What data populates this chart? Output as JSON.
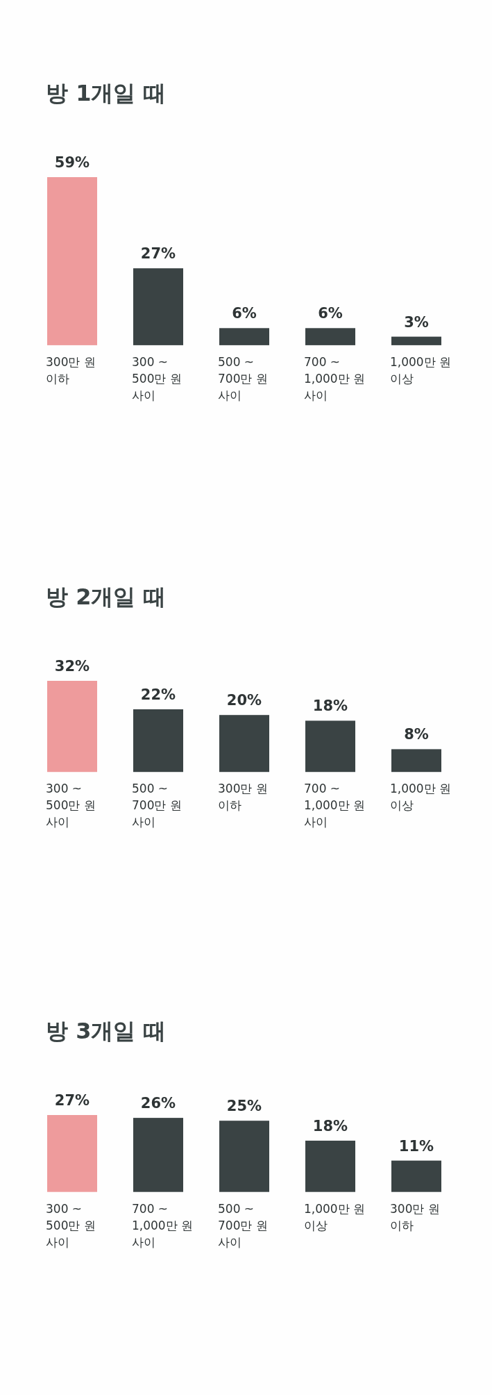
{
  "chart_data": [
    {
      "type": "bar",
      "title": "방 1개일 때",
      "categories": [
        "300만 원\n이하",
        "300 ~\n500만 원\n사이",
        "500 ~\n700만 원\n사이",
        "700 ~\n1,000만 원\n사이",
        "1,000만 원\n이상"
      ],
      "values": [
        59,
        27,
        6,
        6,
        3
      ],
      "colors": [
        "#ee9b9c",
        "#3a4344",
        "#3a4344",
        "#3a4344",
        "#3a4344"
      ],
      "value_labels": [
        "59%",
        "27%",
        "6%",
        "6%",
        "3%"
      ]
    },
    {
      "type": "bar",
      "title": "방 2개일 때",
      "categories": [
        "300 ~\n500만 원\n사이",
        "500 ~\n700만 원\n사이",
        "300만 원\n이하",
        "700 ~\n1,000만 원\n사이",
        "1,000만 원\n이상"
      ],
      "values": [
        32,
        22,
        20,
        18,
        8
      ],
      "colors": [
        "#ee9b9c",
        "#3a4344",
        "#3a4344",
        "#3a4344",
        "#3a4344"
      ],
      "value_labels": [
        "32%",
        "22%",
        "20%",
        "18%",
        "8%"
      ]
    },
    {
      "type": "bar",
      "title": "방 3개일 때",
      "categories": [
        "300 ~\n500만 원\n사이",
        "700 ~\n1,000만 원\n사이",
        "500 ~\n700만 원\n사이",
        "1,000만 원\n이상",
        "300만 원\n이하"
      ],
      "values": [
        27,
        26,
        25,
        18,
        11
      ],
      "colors": [
        "#ee9b9c",
        "#3a4344",
        "#3a4344",
        "#3a4344",
        "#3a4344"
      ],
      "value_labels": [
        "27%",
        "26%",
        "25%",
        "18%",
        "11%"
      ]
    }
  ]
}
